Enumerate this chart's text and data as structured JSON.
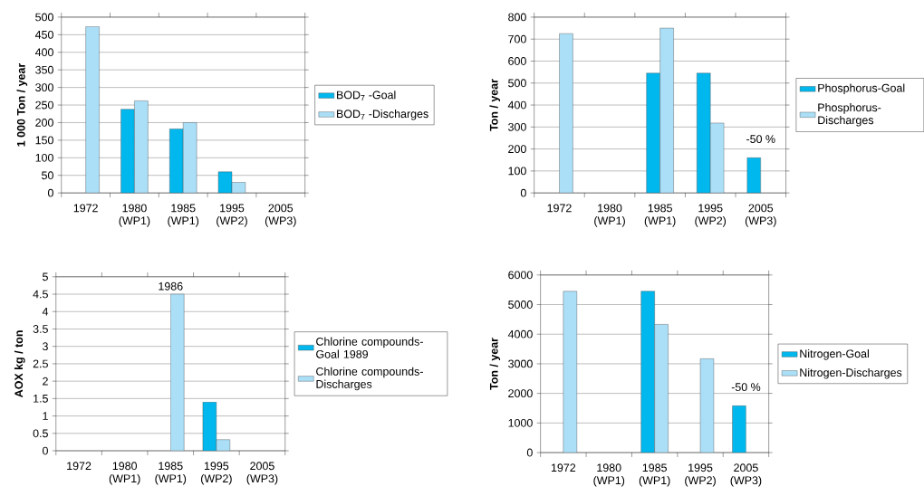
{
  "chart_data": [
    {
      "type": "bar",
      "ylabel": "1 000 Ton / year",
      "categories": [
        "1972",
        "1980 (WP1)",
        "1985 (WP1)",
        "1995 (WP2)",
        "2005 (WP3)"
      ],
      "series": [
        {
          "name": "BOD$_{7}$ -Goal",
          "color": "#00b8ee",
          "values": [
            null,
            238,
            182,
            60,
            null
          ]
        },
        {
          "name": "BOD$_{7}$ -Discharges",
          "color": "#aadff7",
          "values": [
            473,
            262,
            200,
            30,
            null
          ]
        }
      ],
      "ylim": [
        0,
        500
      ],
      "yticks": [
        0,
        50,
        100,
        150,
        200,
        250,
        300,
        350,
        400,
        450,
        500
      ],
      "grid": "y",
      "legend": "right"
    },
    {
      "type": "bar",
      "ylabel": "Ton / year",
      "categories": [
        "1972",
        "1980 (WP1)",
        "1985 (WP1)",
        "1995 (WP2)",
        "2005 (WP3)"
      ],
      "series": [
        {
          "name": "Phosphorus-Goal",
          "color": "#00b8ee",
          "values": [
            null,
            null,
            545,
            545,
            160
          ]
        },
        {
          "name": "Phosphorus-Discharges",
          "color": "#aadff7",
          "values": [
            725,
            null,
            750,
            318,
            null
          ]
        }
      ],
      "ylim": [
        0,
        800
      ],
      "yticks": [
        0,
        100,
        200,
        300,
        400,
        500,
        600,
        700,
        800
      ],
      "grid": "y",
      "legend": "right",
      "annotations": [
        {
          "text": "-50 %",
          "x": "2005 (WP3)",
          "y": 160
        }
      ]
    },
    {
      "type": "bar",
      "ylabel": "AOX kg / ton",
      "categories": [
        "1972",
        "1980 (WP1)",
        "1985 (WP1)",
        "1995 (WP2)",
        "2005 (WP3)"
      ],
      "series": [
        {
          "name": "Chlorine compounds-Goal 1989",
          "color": "#00b8ee",
          "values": [
            null,
            null,
            null,
            1.4,
            null
          ]
        },
        {
          "name": "Chlorine compounds-Discharges",
          "color": "#aadff7",
          "values": [
            null,
            null,
            4.5,
            0.32,
            null
          ]
        }
      ],
      "ylim": [
        0,
        5
      ],
      "yticks": [
        0,
        0.5,
        1,
        1.5,
        2,
        2.5,
        3,
        3.5,
        4,
        4.5,
        5
      ],
      "grid": "y",
      "legend": "right",
      "annotations": [
        {
          "text": "1986",
          "x": "1985 (WP1)",
          "y": 4.5
        }
      ]
    },
    {
      "type": "bar",
      "ylabel": "Ton / year",
      "categories": [
        "1972",
        "1980 (WP1)",
        "1985 (WP1)",
        "1995 (WP2)",
        "2005 (WP3)"
      ],
      "series": [
        {
          "name": "Nitrogen-Goal",
          "color": "#00b8ee",
          "values": [
            null,
            null,
            5450,
            null,
            1580
          ]
        },
        {
          "name": "Nitrogen-Discharges",
          "color": "#aadff7",
          "values": [
            5450,
            null,
            4330,
            3170,
            null
          ]
        }
      ],
      "ylim": [
        0,
        6000
      ],
      "yticks": [
        0,
        1000,
        2000,
        3000,
        4000,
        5000,
        6000
      ],
      "grid": "y",
      "legend": "right",
      "annotations": [
        {
          "text": "-50 %",
          "x": "2005 (WP3)",
          "y": 1580
        }
      ]
    }
  ]
}
